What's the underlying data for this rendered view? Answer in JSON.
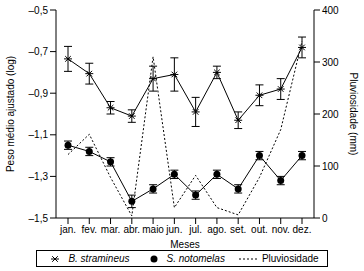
{
  "chart_data": {
    "type": "line",
    "x_label": "Meses",
    "y_label": "Peso médio ajustado (log)",
    "y2_label": "Pluviosidade (mm)",
    "categories": [
      "jan.",
      "fev.",
      "mar.",
      "abr.",
      "maio",
      "jun.",
      "jul.",
      "ago.",
      "set.",
      "out.",
      "nov.",
      "dez."
    ],
    "ylim": [
      -1.5,
      -0.5
    ],
    "yticks": [
      {
        "value": -1.5,
        "label": "–1,5"
      },
      {
        "value": -1.3,
        "label": "–1,3"
      },
      {
        "value": -1.1,
        "label": "–1,1"
      },
      {
        "value": -0.9,
        "label": "–0,9"
      },
      {
        "value": -0.7,
        "label": "–0,7"
      },
      {
        "value": -0.5,
        "label": "–0,5"
      }
    ],
    "y2lim": [
      0,
      400
    ],
    "y2ticks": [
      0,
      100,
      200,
      300,
      400
    ],
    "legend": "bottom",
    "series": [
      {
        "name": "B. stramineus",
        "color": "#000000",
        "marker": "asterisk",
        "line_style": "solid",
        "values": [
          -0.735,
          -0.806,
          -0.97,
          -1.01,
          -0.83,
          -0.81,
          -0.99,
          -0.8,
          -1.03,
          -0.91,
          -0.88,
          -0.68
        ],
        "errors": [
          0.06,
          0.05,
          0.03,
          0.03,
          0.06,
          0.08,
          0.07,
          0.03,
          0.04,
          0.05,
          0.05,
          0.05
        ]
      },
      {
        "name": "S. notomelas",
        "color": "#000000",
        "marker": "circle",
        "line_style": "solid",
        "values": [
          -1.15,
          -1.18,
          -1.23,
          -1.42,
          -1.36,
          -1.29,
          -1.39,
          -1.29,
          -1.36,
          -1.2,
          -1.32,
          -1.2
        ],
        "errors": [
          0.02,
          0.02,
          0.02,
          0.03,
          0.02,
          0.02,
          0.02,
          0.02,
          0.02,
          0.02,
          0.02,
          0.02
        ]
      },
      {
        "name": "Pluviosidade",
        "color": "#000000",
        "marker": "none",
        "line_style": "dotted",
        "axis": "y2",
        "values": [
          122,
          161,
          78,
          4,
          310,
          20,
          82,
          20,
          6,
          78,
          170,
          340
        ]
      }
    ]
  }
}
